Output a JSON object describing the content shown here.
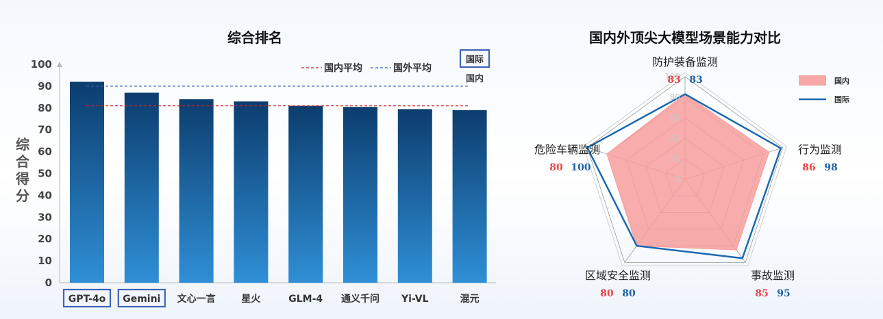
{
  "charts": [
    {
      "type": "bar",
      "title": "综合排名",
      "ylabel": "综合得分",
      "ylim": [
        0,
        100
      ],
      "yticks": [
        0,
        10,
        20,
        30,
        40,
        50,
        60,
        70,
        80,
        90,
        100
      ],
      "categories": [
        "GPT-4o",
        "Gemini",
        "文心一言",
        "星火",
        "GLM-4",
        "通义千问",
        "Yi-VL",
        "混元"
      ],
      "values": [
        92,
        87,
        84,
        83,
        81,
        80.5,
        79.5,
        79
      ],
      "highlighted": [
        "GPT-4o",
        "Gemini"
      ],
      "reference_lines": [
        {
          "name": "国内平均",
          "value": 81,
          "color": "#d0202a",
          "style": "dashed"
        },
        {
          "name": "国外平均",
          "value": 90,
          "color": "#2f64b8",
          "style": "dashed"
        }
      ],
      "group_legend": {
        "international": "国际",
        "domestic": "国内"
      },
      "bar_color_top": "#0c3d6e",
      "bar_color_bottom": "#2f8fd6",
      "highlight_color": "#3c64b4"
    },
    {
      "type": "radar",
      "title": "国内外顶尖大模型场景能力对比",
      "rlim": [
        0,
        100
      ],
      "rticks": [
        0,
        20,
        40,
        60,
        80,
        100
      ],
      "axes": [
        "防护装备监测",
        "行为监测",
        "事故监测",
        "区域安全监测",
        "危险车辆监测"
      ],
      "series": [
        {
          "name": "国内",
          "values": [
            83,
            86,
            85,
            80,
            80
          ],
          "color": "#f79d9d",
          "style": "fill"
        },
        {
          "name": "国际",
          "values": [
            83,
            98,
            95,
            80,
            100
          ],
          "color": "#1b68b0",
          "style": "line"
        }
      ]
    }
  ]
}
